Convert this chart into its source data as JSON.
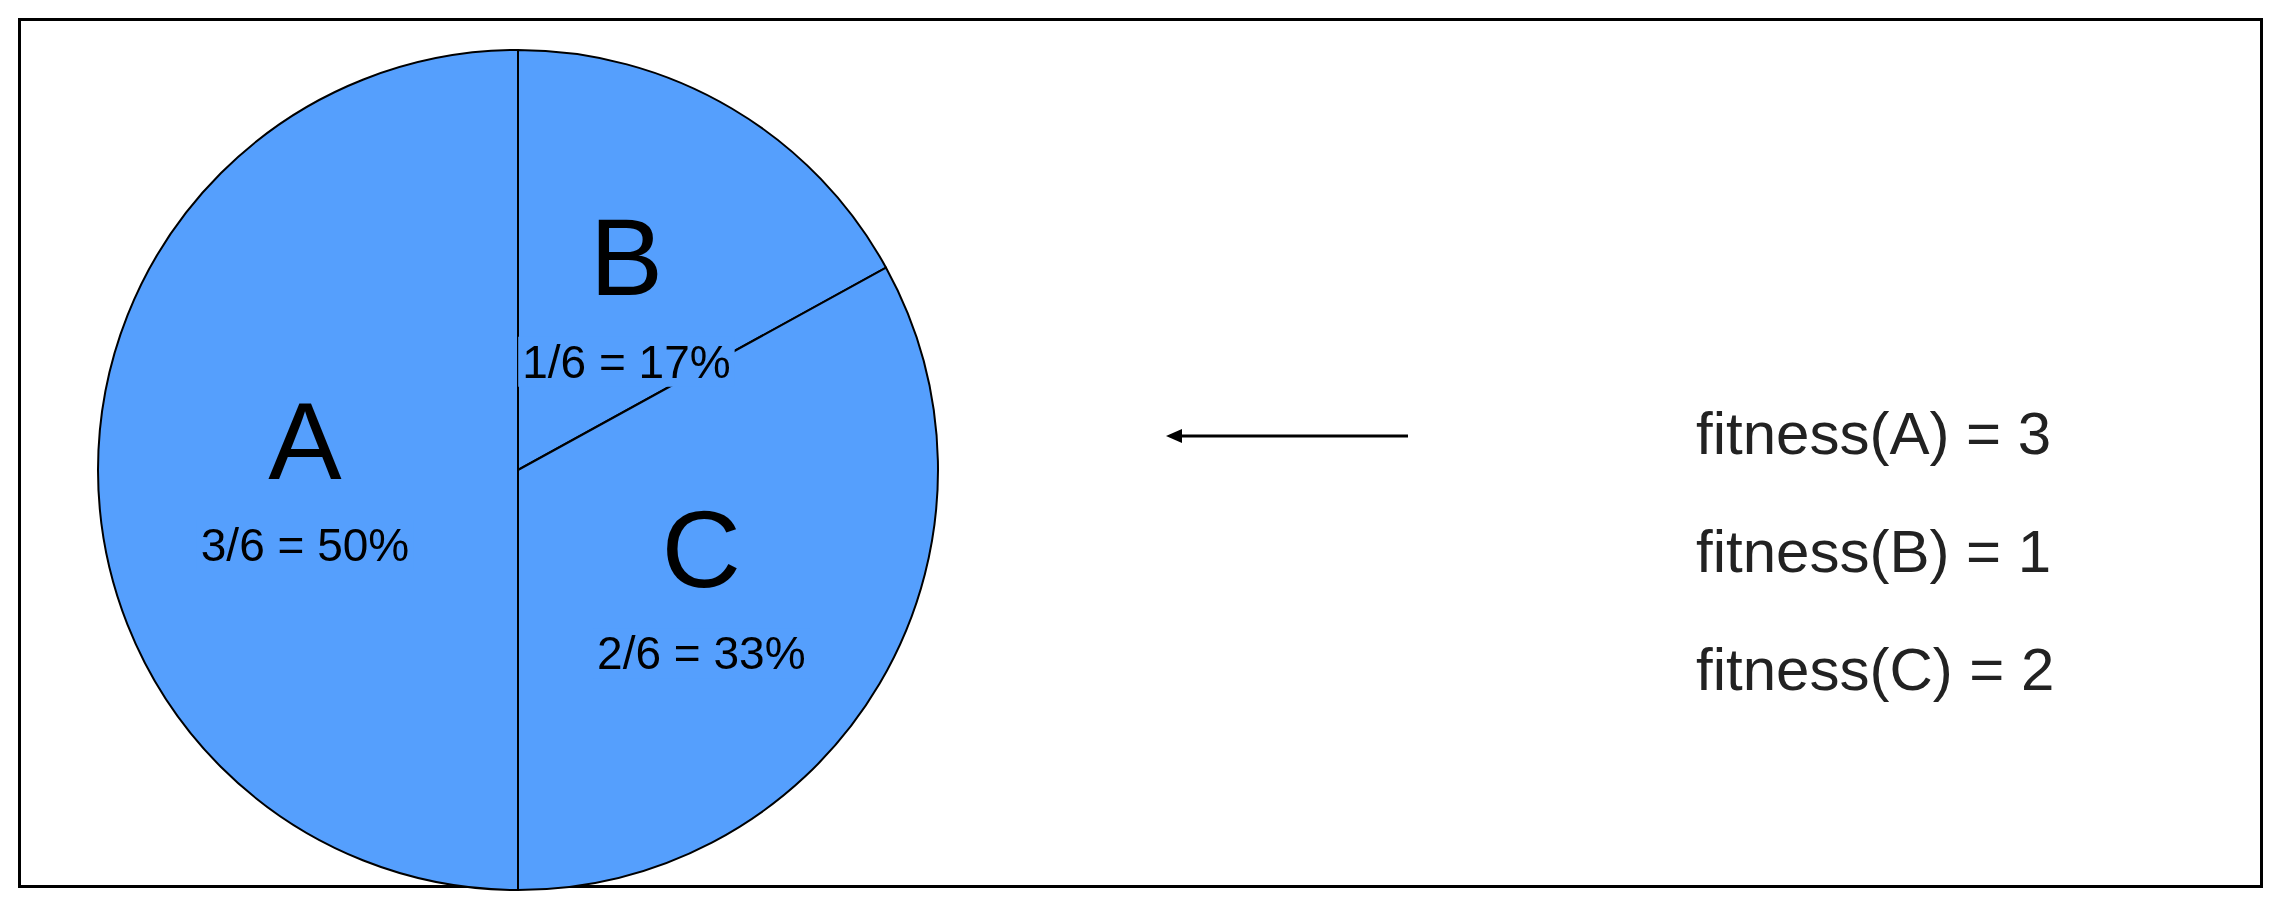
{
  "chart_data": {
    "type": "pie",
    "categories": [
      "A",
      "B",
      "C"
    ],
    "values": [
      50,
      17,
      33
    ],
    "colors": [
      "#559ffd",
      "#559ffd",
      "#559ffd"
    ],
    "value_labels": [
      "3/6 = 50%",
      "1/6 = 17%",
      "2/6 = 33%"
    ],
    "annotations": [
      "fitness(A) = 3",
      "fitness(B) = 1",
      "fitness(C) = 2"
    ]
  }
}
